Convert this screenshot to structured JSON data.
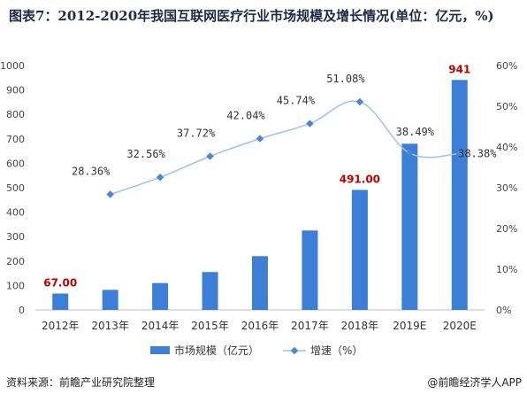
{
  "title": "图表7：2012-2020年我国互联网医疗行业市场规模及增长情况(单位：亿元，%)",
  "footer": {
    "source": "资料来源：前瞻产业研究院整理",
    "brand": "@前瞻经济学人APP"
  },
  "chart_data": {
    "type": "bar",
    "categories": [
      "2012年",
      "2013年",
      "2014年",
      "2015年",
      "2016年",
      "2017年",
      "2018年",
      "2019E",
      "2020E"
    ],
    "series": [
      {
        "name": "市场规模（亿元）",
        "type": "bar",
        "axis": "left",
        "color": "#3d7fd6",
        "values": [
          67,
          82,
          110,
          155,
          220,
          325,
          491,
          680,
          941
        ]
      },
      {
        "name": "增速（%）",
        "type": "line",
        "axis": "right",
        "color": "#9cc3ea",
        "values": [
          null,
          28.36,
          32.56,
          37.72,
          42.04,
          45.74,
          51.08,
          38.49,
          38.38
        ]
      }
    ],
    "bar_labels": [
      {
        "index": 0,
        "text": "67.00"
      },
      {
        "index": 6,
        "text": "491.00"
      },
      {
        "index": 8,
        "text": "941"
      }
    ],
    "line_labels": [
      "",
      "28.36%",
      "32.56%",
      "37.72%",
      "42.04%",
      "45.74%",
      "51.08%",
      "38.49%",
      "38.38%"
    ],
    "y_left": {
      "min": 0,
      "max": 1000,
      "step": 100,
      "ticks": [
        "0",
        "100",
        "200",
        "300",
        "400",
        "500",
        "600",
        "700",
        "800",
        "900",
        "1000"
      ]
    },
    "y_right": {
      "min": 0,
      "max": 60,
      "step": 10,
      "ticks": [
        "0%",
        "10%",
        "20%",
        "30%",
        "40%",
        "50%",
        "60%"
      ]
    },
    "grid": false,
    "legend": "bottom",
    "label_color": "#c00000"
  }
}
